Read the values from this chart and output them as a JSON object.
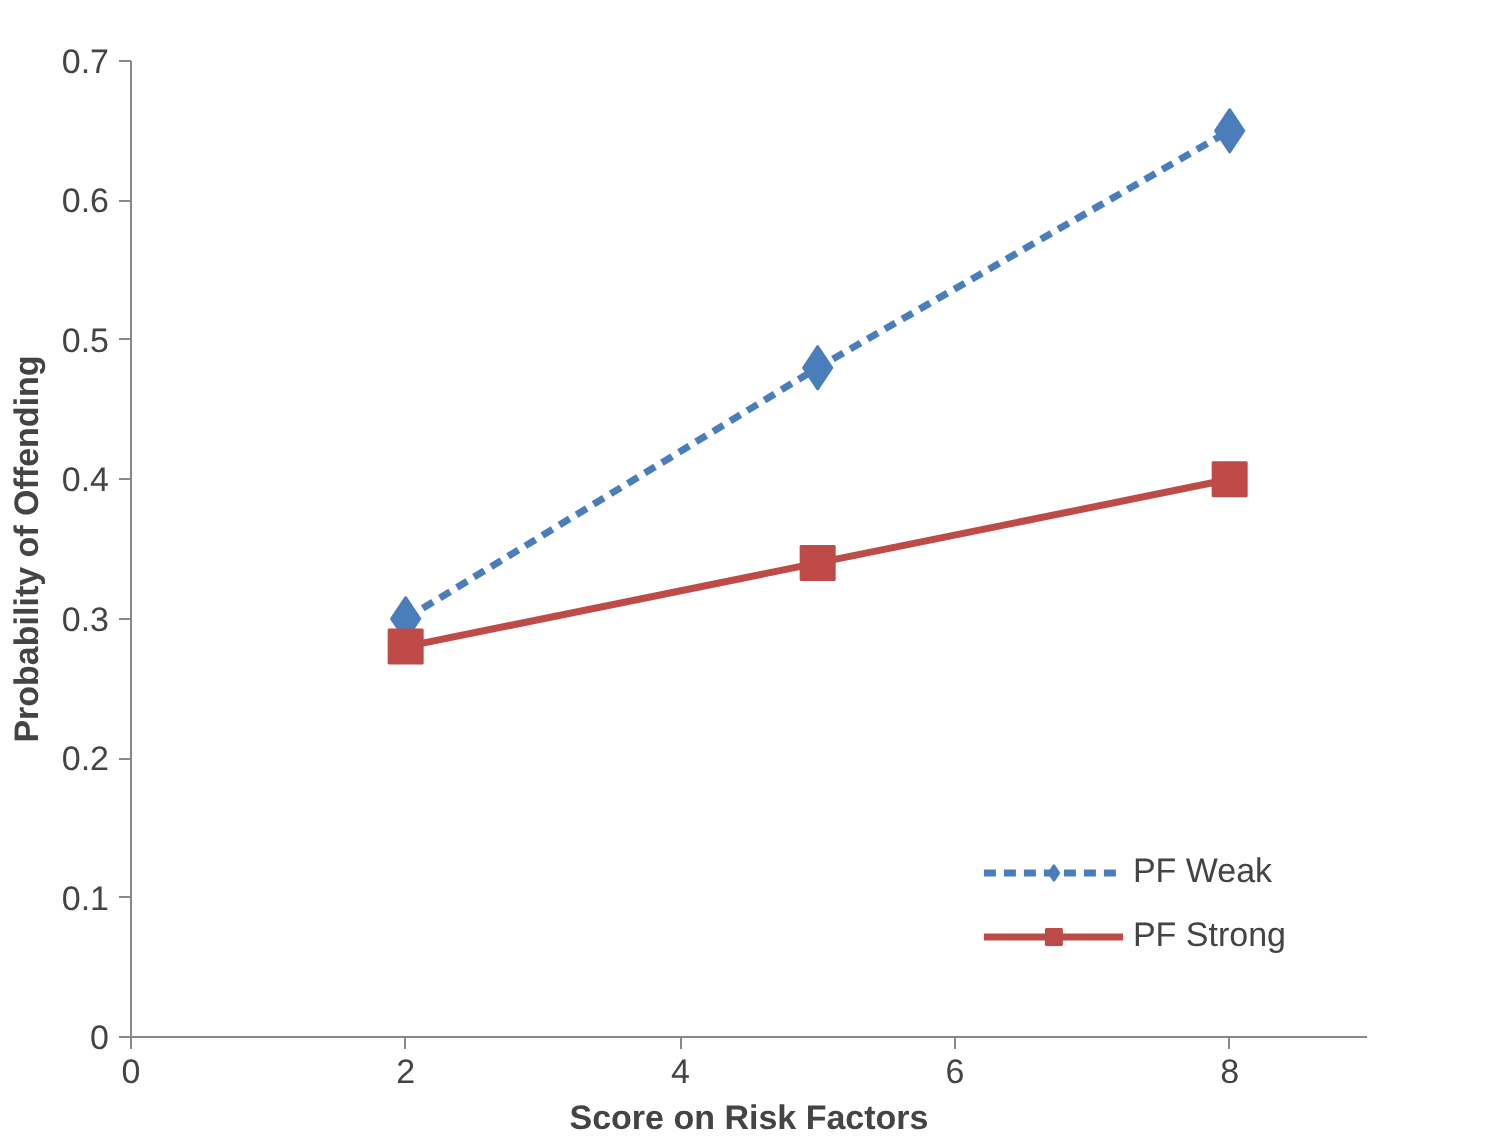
{
  "chart_data": {
    "type": "line",
    "xlabel": "Score on Risk Factors",
    "ylabel": "Probability of Offending",
    "x": [
      2,
      5,
      8
    ],
    "series": [
      {
        "name": "PF Weak",
        "color": "#4a7ebb",
        "values": [
          0.3,
          0.48,
          0.65
        ],
        "marker": "diamond",
        "line_style": "dashed"
      },
      {
        "name": "PF Strong",
        "color": "#be4b48",
        "values": [
          0.28,
          0.34,
          0.4
        ],
        "marker": "square",
        "line_style": "solid"
      }
    ],
    "xlim": [
      0,
      9
    ],
    "xticks": [
      0,
      2,
      4,
      6,
      8
    ],
    "ylim": [
      0,
      0.7
    ],
    "yticks": [
      0,
      0.1,
      0.2,
      0.3,
      0.4,
      0.5,
      0.6,
      0.7
    ],
    "grid": false,
    "legend": "bottom right"
  }
}
